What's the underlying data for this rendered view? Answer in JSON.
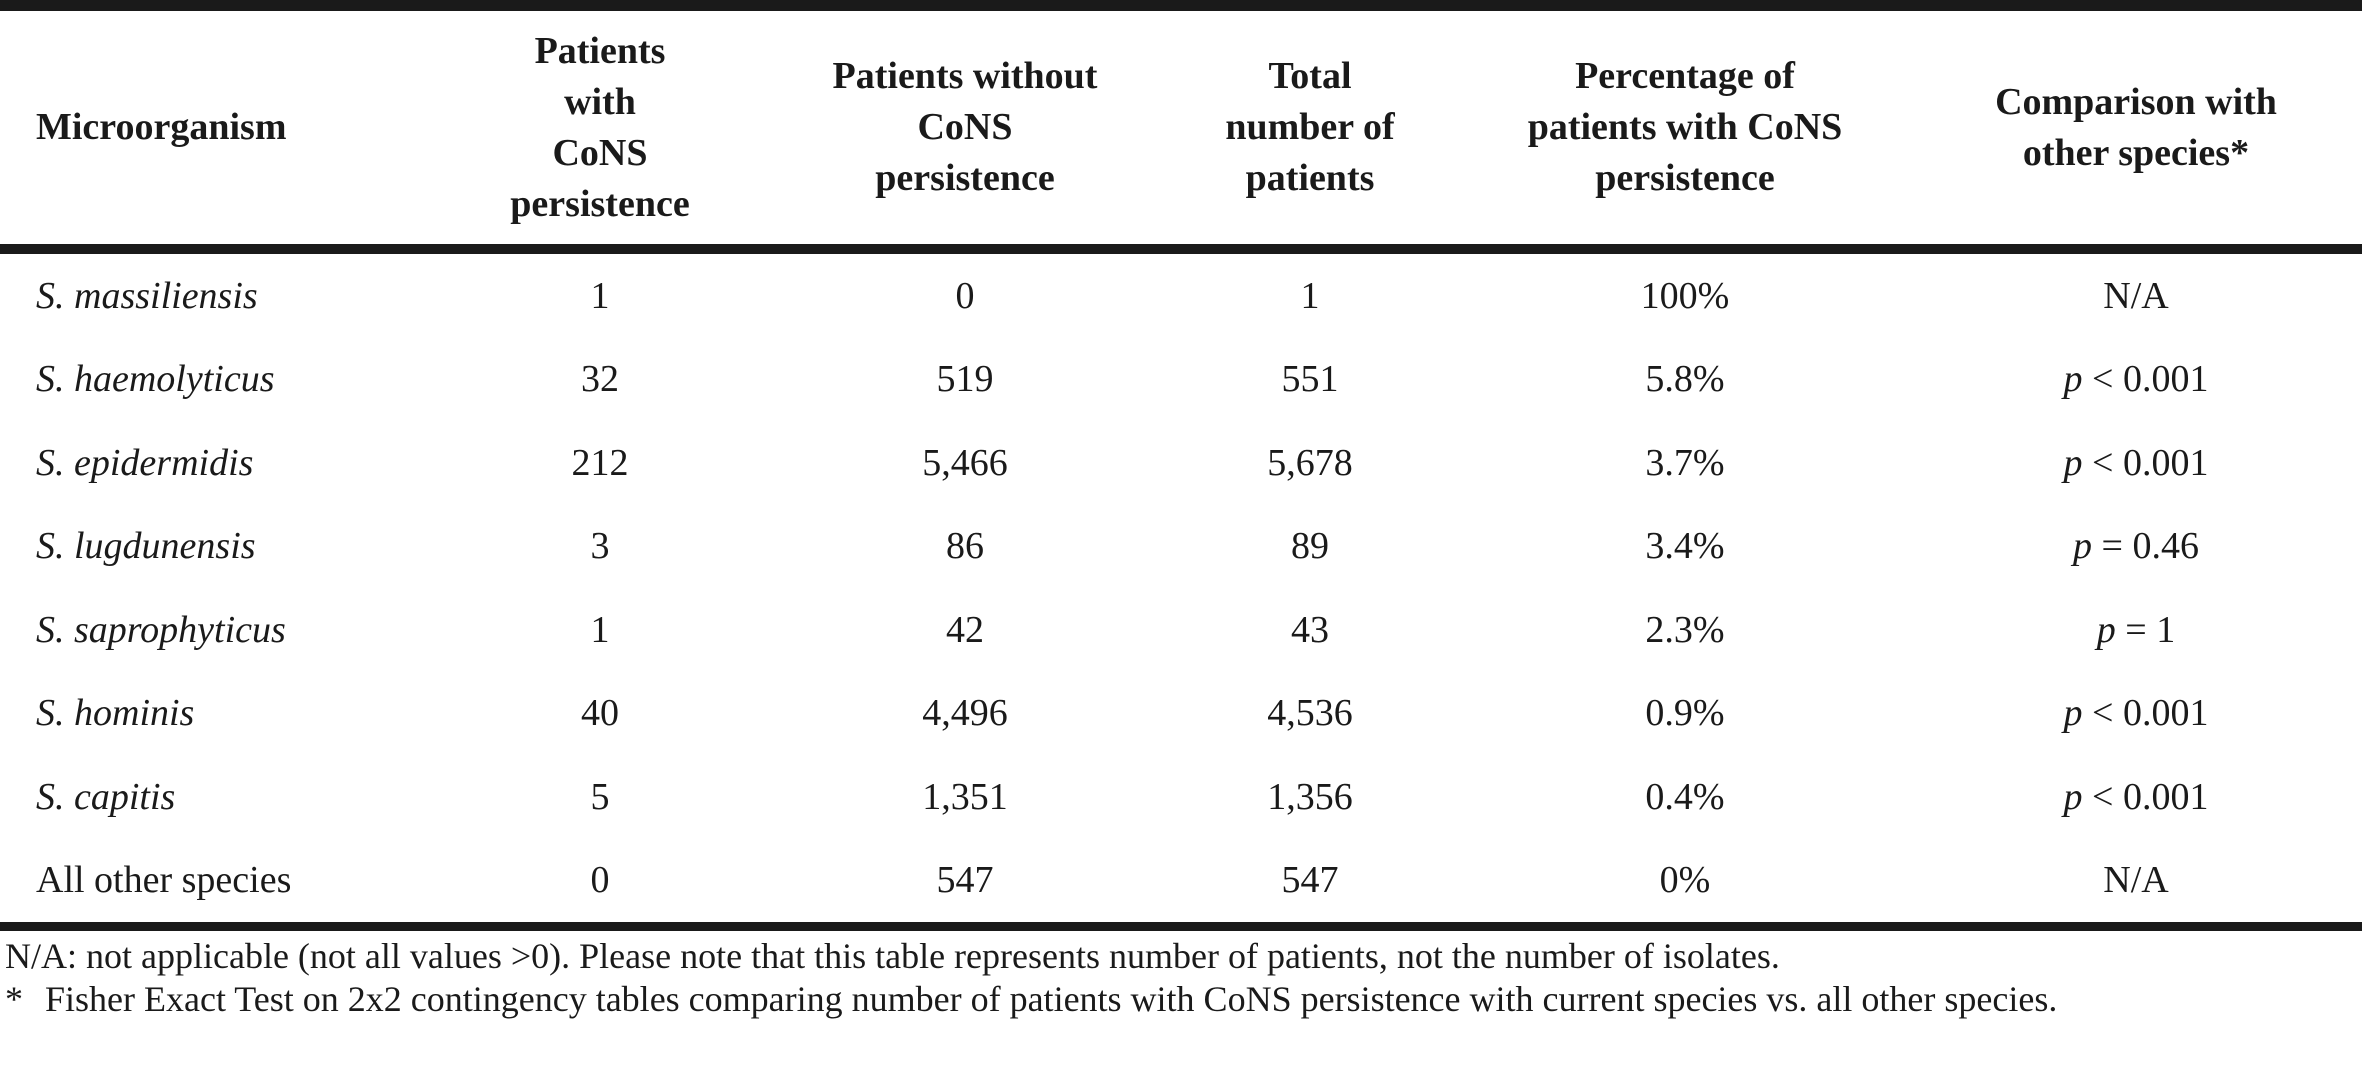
{
  "table": {
    "headers": [
      "Microorganism",
      "Patients with CoNS persistence",
      "Patients without CoNS persistence",
      "Total number of patients",
      "Percentage of patients with CoNS persistence",
      "Comparison with other species*"
    ],
    "header_lines": [
      [
        "Microorganism"
      ],
      [
        "Patients",
        "with",
        "CoNS",
        "persistence"
      ],
      [
        "Patients without",
        "CoNS",
        "persistence"
      ],
      [
        "Total",
        "number of",
        "patients"
      ],
      [
        "Percentage of",
        "patients with CoNS",
        "persistence"
      ],
      [
        "Comparison with",
        "other species*"
      ]
    ],
    "rows": [
      {
        "organism": "S. massiliensis",
        "with": "1",
        "without": "0",
        "total": "1",
        "percent": "100%",
        "comparison_p": "",
        "comparison_rest": "N/A"
      },
      {
        "organism": "S. haemolyticus",
        "with": "32",
        "without": "519",
        "total": "551",
        "percent": "5.8%",
        "comparison_p": "p",
        "comparison_rest": " < 0.001"
      },
      {
        "organism": "S. epidermidis",
        "with": "212",
        "without": "5,466",
        "total": "5,678",
        "percent": "3.7%",
        "comparison_p": "p",
        "comparison_rest": " < 0.001"
      },
      {
        "organism": "S. lugdunensis",
        "with": "3",
        "without": "86",
        "total": "89",
        "percent": "3.4%",
        "comparison_p": "p",
        "comparison_rest": " = 0.46"
      },
      {
        "organism": "S. saprophyticus",
        "with": "1",
        "without": "42",
        "total": "43",
        "percent": "2.3%",
        "comparison_p": "p",
        "comparison_rest": " = 1"
      },
      {
        "organism": "S. hominis",
        "with": "40",
        "without": "4,496",
        "total": "4,536",
        "percent": "0.9%",
        "comparison_p": "p",
        "comparison_rest": " < 0.001"
      },
      {
        "organism": "S. capitis",
        "with": "5",
        "without": "1,351",
        "total": "1,356",
        "percent": "0.4%",
        "comparison_p": "p",
        "comparison_rest": " < 0.001"
      },
      {
        "organism": "All other species",
        "with": "0",
        "without": "547",
        "total": "547",
        "percent": "0%",
        "comparison_p": "",
        "comparison_rest": "N/A"
      }
    ]
  },
  "footnotes": {
    "na_note": "N/A: not applicable (not all values >0). Please note that this table represents number of patients, not the number of isolates.",
    "star_mark": "*",
    "star_note": "Fisher Exact Test on 2x2 contingency tables comparing number of patients with CoNS persistence with current species vs. all other species."
  }
}
